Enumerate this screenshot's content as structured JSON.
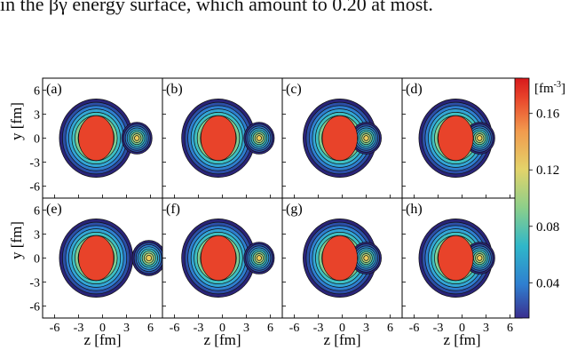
{
  "header_text": "in the βγ energy surface, which amount to 0.20 at most.",
  "panels": [
    {
      "label": "(a)",
      "cx": -0.8,
      "fragment": 4.3
    },
    {
      "label": "(b)",
      "cx": -0.5,
      "fragment": 4.6
    },
    {
      "label": "(c)",
      "cx": -0.3,
      "fragment": 3.0
    },
    {
      "label": "(d)",
      "cx": -0.8,
      "fragment": 2.2
    },
    {
      "label": "(e)",
      "cx": -0.8,
      "fragment": 5.8
    },
    {
      "label": "(f)",
      "cx": -0.5,
      "fragment": 4.6
    },
    {
      "label": "(g)",
      "cx": -0.3,
      "fragment": 3.0
    },
    {
      "label": "(h)",
      "cx": -0.8,
      "fragment": 2.2
    }
  ],
  "axes": {
    "ylabel": "y [fm]",
    "xlabel": "z [fm]",
    "xticks": [
      "-6",
      "-3",
      "0",
      "3",
      "6"
    ],
    "yticks": [
      "6",
      "3",
      "0",
      "-3",
      "-6"
    ]
  },
  "colorbar": {
    "unit": "[fm",
    "unit_sup": "-3",
    "unit_close": "]",
    "ticks": [
      "0.16",
      "0.12",
      "0.08",
      "0.04"
    ],
    "colors": [
      "#3b2f8f",
      "#2f7fd0",
      "#2fb7c9",
      "#8ccf8a",
      "#e3d36a",
      "#f29a4d",
      "#e8432a",
      "#d7191c"
    ]
  }
}
